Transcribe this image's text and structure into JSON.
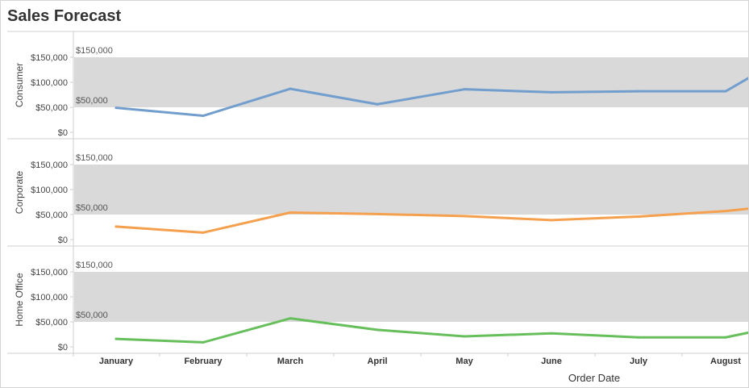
{
  "page": {
    "title": "Sales Forecast"
  },
  "chart_data": {
    "type": "line",
    "title": "Sales Forecast",
    "xlabel": "Order Date",
    "categories": [
      "January",
      "February",
      "March",
      "April",
      "May",
      "June",
      "July",
      "August"
    ],
    "ylim": [
      0,
      150000
    ],
    "y_ticks": [
      "$0",
      "$50,000",
      "$100,000",
      "$150,000"
    ],
    "y_tick_values": [
      0,
      50000,
      100000,
      150000
    ],
    "reference_band": {
      "from": 50000,
      "to": 150000,
      "label_low": "$50,000",
      "label_high": "$150,000",
      "color": "#d9d9d9"
    },
    "grid": false,
    "series": [
      {
        "name": "Consumer",
        "color": "#729ece",
        "values": [
          49000,
          33000,
          87000,
          56000,
          86000,
          80000,
          82000,
          82000
        ],
        "trailing_value": 110000
      },
      {
        "name": "Corporate",
        "color": "#f5a04e",
        "values": [
          26000,
          14000,
          54000,
          51000,
          47000,
          39000,
          46000,
          57000
        ],
        "trailing_value": 62000
      },
      {
        "name": "Home Office",
        "color": "#67bf5c",
        "values": [
          16000,
          9000,
          57000,
          34000,
          21000,
          27000,
          19000,
          19000
        ],
        "trailing_value": 29000
      }
    ]
  }
}
